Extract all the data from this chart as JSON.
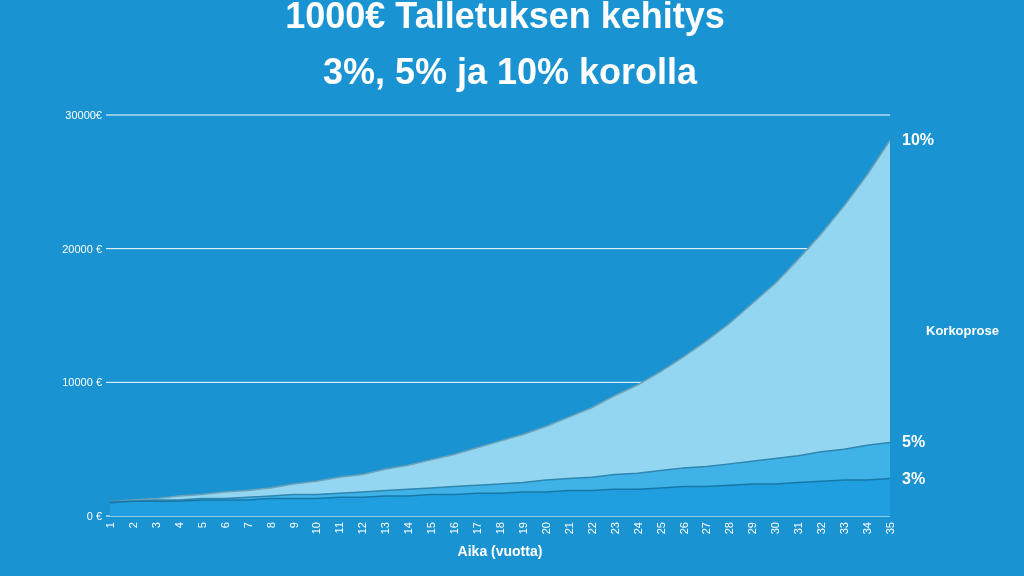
{
  "chart_data": {
    "type": "area",
    "title": "1000€ Talletuksen kehitys",
    "subtitle": "3%, 5% ja 10% korolla",
    "xlabel": "Aika (vuotta)",
    "legend_title": "Korkoprose",
    "categories": [
      "1",
      "2",
      "3",
      "4",
      "5",
      "6",
      "7",
      "8",
      "9",
      "10",
      "11",
      "12",
      "13",
      "14",
      "15",
      "16",
      "17",
      "18",
      "19",
      "20",
      "21",
      "22",
      "23",
      "24",
      "25",
      "26",
      "27",
      "28",
      "29",
      "30",
      "31",
      "32",
      "33",
      "34",
      "35"
    ],
    "series": [
      {
        "name": "10%",
        "color": "#93d6f2",
        "values": [
          1100,
          1200,
          1300,
          1500,
          1600,
          1800,
          1900,
          2100,
          2400,
          2600,
          2900,
          3100,
          3500,
          3800,
          4200,
          4600,
          5100,
          5600,
          6100,
          6700,
          7400,
          8100,
          9000,
          9800,
          10800,
          11900,
          13100,
          14400,
          15900,
          17400,
          19200,
          21100,
          23200,
          25500,
          28100
        ]
      },
      {
        "name": "5%",
        "color": "#3fb2e8",
        "values": [
          1100,
          1100,
          1200,
          1200,
          1300,
          1300,
          1400,
          1500,
          1600,
          1600,
          1700,
          1800,
          1900,
          2000,
          2100,
          2200,
          2300,
          2400,
          2500,
          2700,
          2800,
          2900,
          3100,
          3200,
          3400,
          3600,
          3700,
          3900,
          4100,
          4300,
          4500,
          4800,
          5000,
          5300,
          5500
        ]
      },
      {
        "name": "3%",
        "color": "#1f9fe0",
        "values": [
          1000,
          1100,
          1100,
          1100,
          1200,
          1200,
          1200,
          1300,
          1300,
          1300,
          1400,
          1400,
          1500,
          1500,
          1600,
          1600,
          1700,
          1700,
          1800,
          1800,
          1900,
          1900,
          2000,
          2000,
          2100,
          2200,
          2200,
          2300,
          2400,
          2400,
          2500,
          2600,
          2700,
          2700,
          2800
        ]
      }
    ],
    "ylim": [
      0,
      30000
    ],
    "yticks": [
      {
        "value": 0,
        "label": "0 €"
      },
      {
        "value": 10000,
        "label": "10000 €"
      },
      {
        "value": 20000,
        "label": "20000 €"
      },
      {
        "value": 30000,
        "label": "30000€"
      }
    ],
    "grid": "y"
  }
}
